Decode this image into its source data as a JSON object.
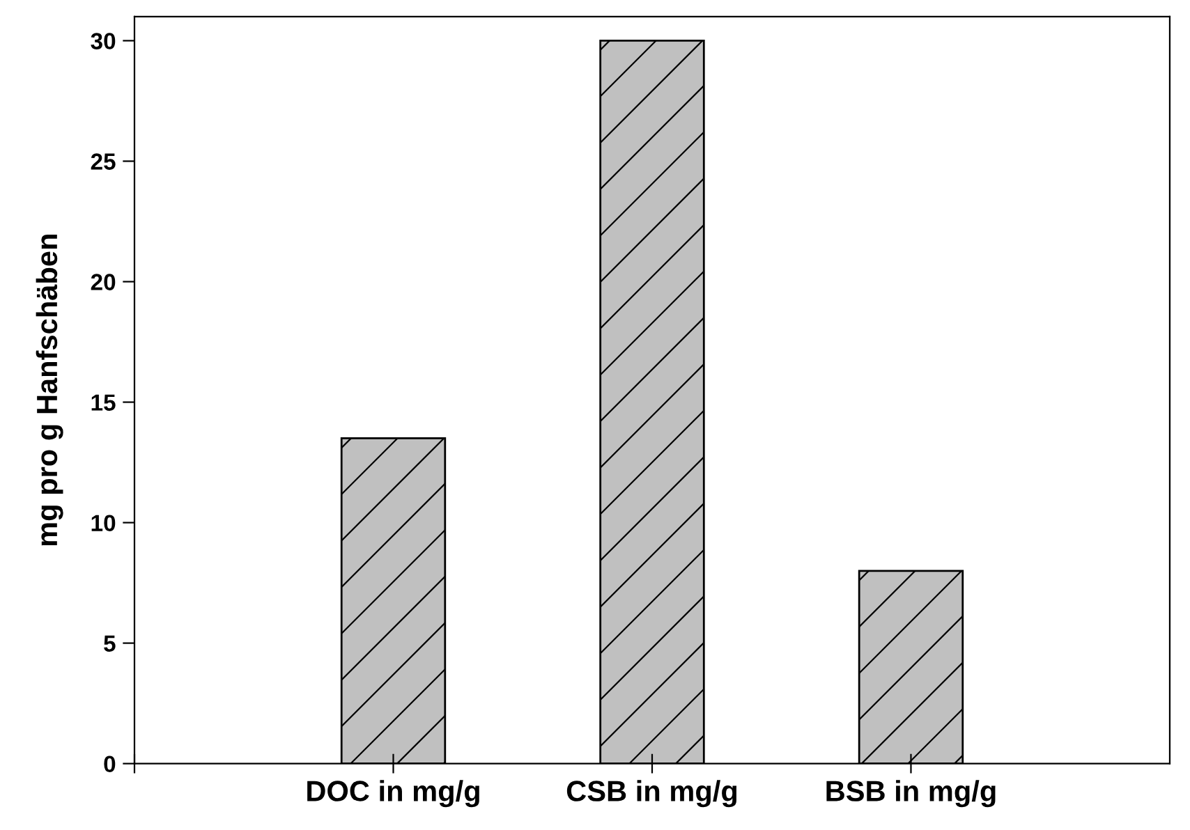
{
  "chart_data": {
    "type": "bar",
    "ylabel": "mg pro g Hanfschäben",
    "categories": [
      "DOC in mg/g",
      "CSB in mg/g",
      "BSB in mg/g"
    ],
    "values": [
      13.5,
      30,
      8
    ],
    "color": "#c0c0c0",
    "ylim": [
      0,
      31
    ],
    "yticks": [
      0,
      5,
      10,
      15,
      20,
      25,
      30
    ],
    "grid": false,
    "legend": false
  }
}
